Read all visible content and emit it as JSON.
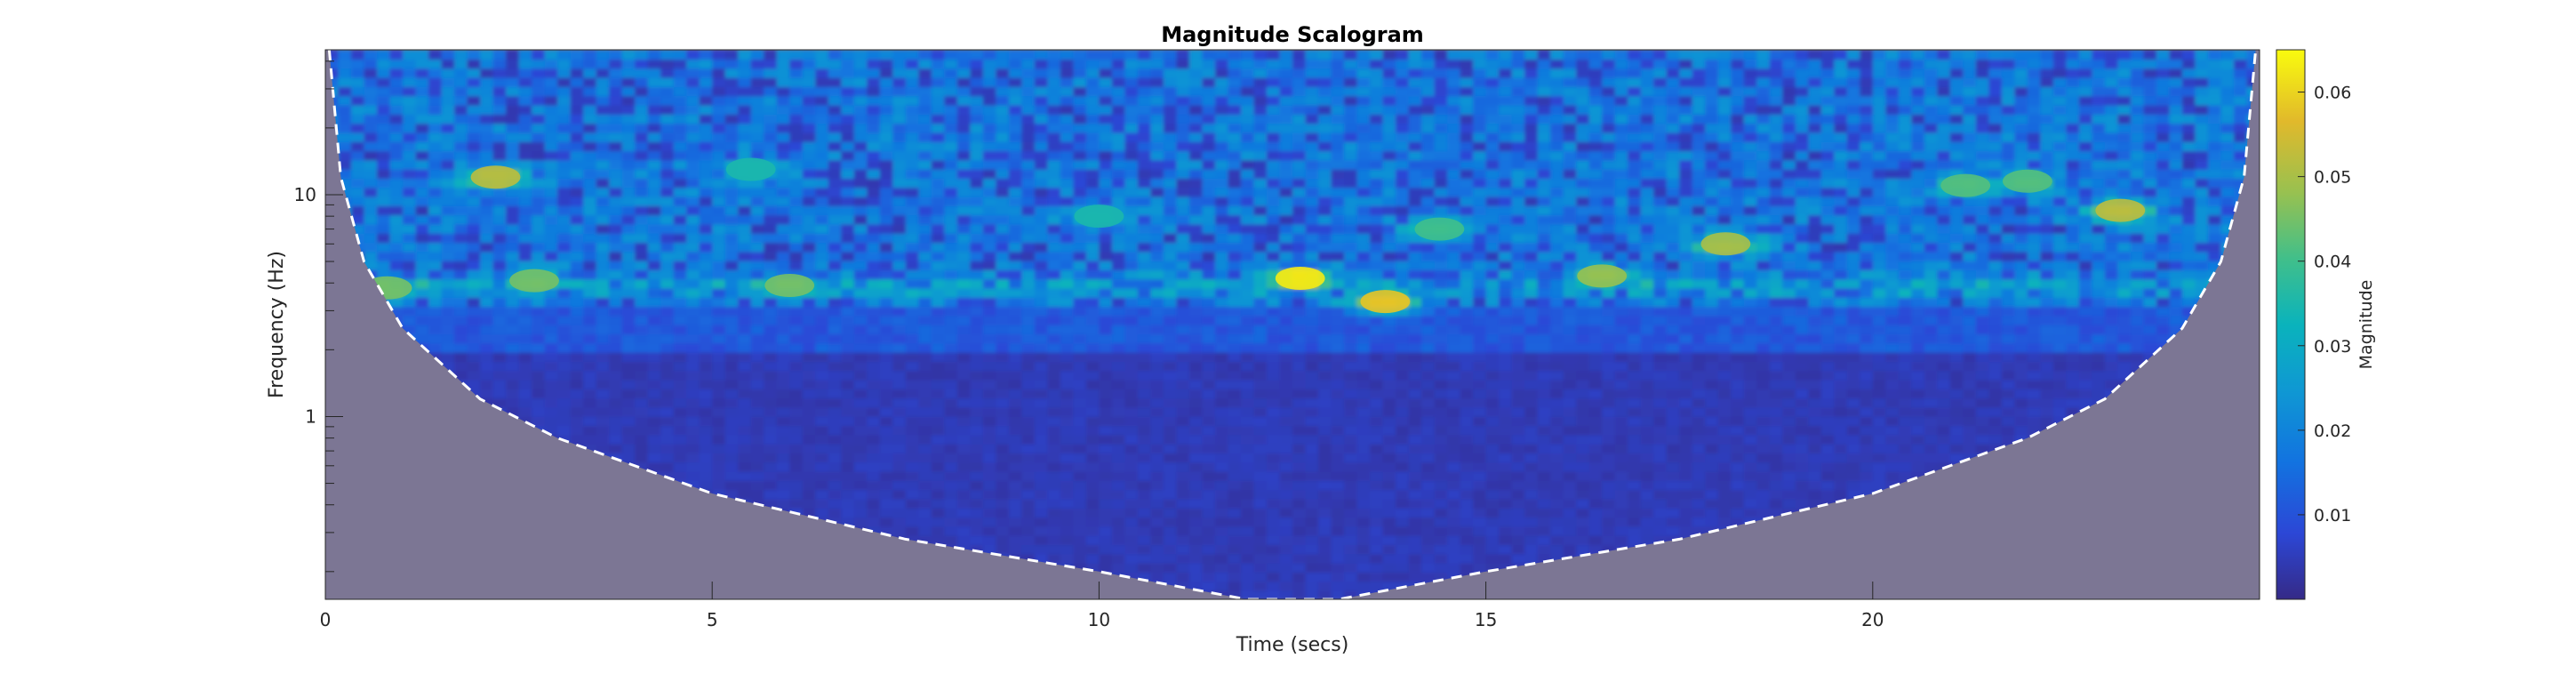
{
  "chart_data": {
    "type": "heatmap",
    "title": "Magnitude Scalogram",
    "xlabel": "Time (secs)",
    "ylabel": "Frequency (Hz)",
    "xlim": [
      0,
      25
    ],
    "ylim": [
      0.15,
      45
    ],
    "y_scale": "log",
    "x_ticks": [
      0,
      5,
      10,
      15,
      20
    ],
    "x_tick_labels": [
      "0",
      "5",
      "10",
      "15",
      "20"
    ],
    "y_ticks": [
      1,
      10
    ],
    "y_tick_labels": [
      "1",
      "10"
    ],
    "colorbar": {
      "label": "Magnitude",
      "range": [
        0,
        0.065
      ],
      "ticks": [
        0.01,
        0.02,
        0.03,
        0.04,
        0.05,
        0.06
      ],
      "tick_labels": [
        "0.01",
        "0.02",
        "0.03",
        "0.04",
        "0.05",
        "0.06"
      ],
      "colormap": "parula",
      "position": "right"
    },
    "cone_of_influence": {
      "style": "dashed",
      "color": "#ffffff",
      "shaded_color": "#7c7694",
      "points": [
        {
          "t": 0.05,
          "f": 45
        },
        {
          "t": 0.2,
          "f": 12
        },
        {
          "t": 0.5,
          "f": 5
        },
        {
          "t": 1.0,
          "f": 2.5
        },
        {
          "t": 2.0,
          "f": 1.2
        },
        {
          "t": 3.0,
          "f": 0.8
        },
        {
          "t": 5.0,
          "f": 0.45
        },
        {
          "t": 7.5,
          "f": 0.28
        },
        {
          "t": 10.0,
          "f": 0.2
        },
        {
          "t": 11.9,
          "f": 0.15
        },
        {
          "t": 13.1,
          "f": 0.15
        },
        {
          "t": 15.0,
          "f": 0.2
        },
        {
          "t": 17.5,
          "f": 0.28
        },
        {
          "t": 20.0,
          "f": 0.45
        },
        {
          "t": 22.0,
          "f": 0.8
        },
        {
          "t": 23.0,
          "f": 1.2
        },
        {
          "t": 24.0,
          "f": 2.5
        },
        {
          "t": 24.5,
          "f": 5
        },
        {
          "t": 24.8,
          "f": 12
        },
        {
          "t": 24.95,
          "f": 45
        }
      ]
    },
    "hotspots": [
      {
        "t": 12.6,
        "f": 4.2,
        "magnitude": 0.063
      },
      {
        "t": 13.7,
        "f": 3.3,
        "magnitude": 0.058
      },
      {
        "t": 2.2,
        "f": 12.0,
        "magnitude": 0.052
      },
      {
        "t": 23.2,
        "f": 8.5,
        "magnitude": 0.052
      },
      {
        "t": 18.1,
        "f": 6.0,
        "magnitude": 0.05
      },
      {
        "t": 16.5,
        "f": 4.3,
        "magnitude": 0.048
      },
      {
        "t": 6.0,
        "f": 3.9,
        "magnitude": 0.045
      },
      {
        "t": 0.8,
        "f": 3.8,
        "magnitude": 0.045
      },
      {
        "t": 2.7,
        "f": 4.1,
        "magnitude": 0.045
      },
      {
        "t": 21.2,
        "f": 11.0,
        "magnitude": 0.042
      },
      {
        "t": 22.0,
        "f": 11.5,
        "magnitude": 0.042
      },
      {
        "t": 14.4,
        "f": 7.0,
        "magnitude": 0.04
      },
      {
        "t": 10.0,
        "f": 8.0,
        "magnitude": 0.035
      },
      {
        "t": 5.5,
        "f": 13.0,
        "magnitude": 0.035
      }
    ],
    "bands": [
      {
        "f_min": 3.0,
        "f_max": 45,
        "typical_magnitude": 0.015
      },
      {
        "f_min": 0.15,
        "f_max": 3.0,
        "typical_magnitude": 0.004
      }
    ]
  }
}
